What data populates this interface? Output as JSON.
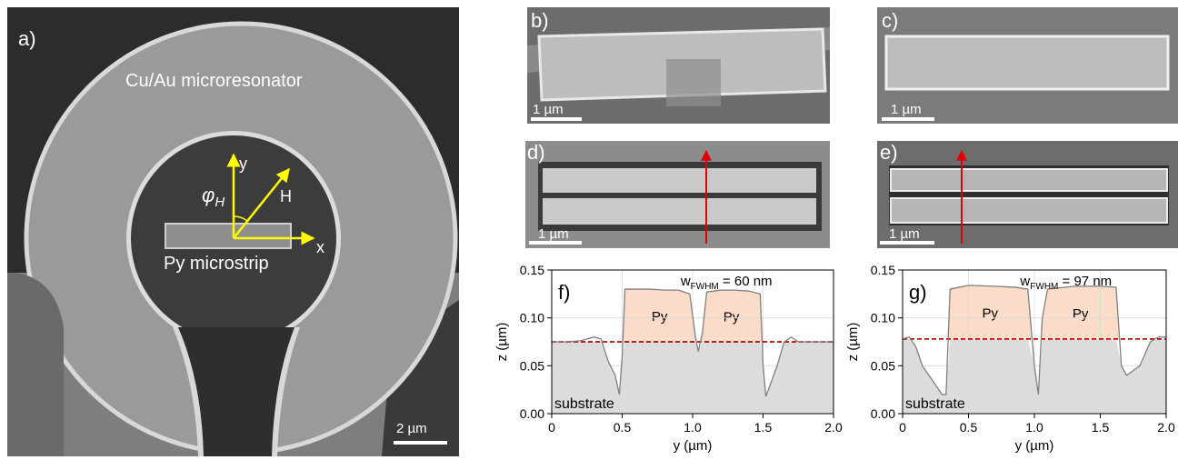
{
  "panels": {
    "a": {
      "label": "a)",
      "resonator": "Cu/Au microresonator",
      "strip": "Py microstrip",
      "axis_y": "y",
      "axis_x": "x",
      "field": "H",
      "angle": "φ",
      "angle_sub": "H",
      "scale": "2 µm"
    },
    "b": {
      "label": "b)",
      "scale": "1 µm"
    },
    "c": {
      "label": "c)",
      "scale": "1 µm"
    },
    "d": {
      "label": "d)",
      "scale": "1 µm"
    },
    "e": {
      "label": "e)",
      "scale": "1 µm"
    }
  },
  "chart_data": [
    {
      "type": "area",
      "label": "f)",
      "annotation": {
        "w": "w",
        "sub": "FWHM",
        "rest": " = 60 nm"
      },
      "region_labels": [
        "Py",
        "Py"
      ],
      "substrate": "substrate",
      "xlabel": "y (µm)",
      "ylabel": "z (µm)",
      "x": [
        0,
        0.1,
        0.2,
        0.3,
        0.35,
        0.4,
        0.45,
        0.48,
        0.5,
        0.52,
        0.6,
        0.7,
        0.8,
        0.9,
        0.98,
        1.02,
        1.04,
        1.07,
        1.1,
        1.2,
        1.3,
        1.4,
        1.48,
        1.5,
        1.52,
        1.55,
        1.6,
        1.65,
        1.7,
        1.75,
        1.8,
        2.0
      ],
      "values": [
        0.075,
        0.075,
        0.076,
        0.08,
        0.078,
        0.055,
        0.04,
        0.02,
        0.06,
        0.13,
        0.13,
        0.13,
        0.129,
        0.129,
        0.125,
        0.08,
        0.065,
        0.085,
        0.127,
        0.129,
        0.129,
        0.128,
        0.125,
        0.05,
        0.018,
        0.03,
        0.05,
        0.075,
        0.08,
        0.075,
        0.075,
        0.075
      ],
      "color": "#7f7f7f",
      "fill_color": "#dcdcdc",
      "region_color": "#fbdcc8",
      "baseline": 0.075,
      "baseline_color": "#c00000",
      "xlim": [
        0,
        2
      ],
      "xticks": [
        0,
        0.5,
        {
          "value": 1,
          "label": "1.0"
        },
        1.5,
        {
          "value": 2,
          "label": "2.0"
        }
      ],
      "ylim": [
        0,
        0.15
      ],
      "yticks": [
        {
          "value": 0,
          "label": "0.00"
        },
        {
          "value": 0.05,
          "label": "0.05"
        },
        {
          "value": 0.1,
          "label": "0.10"
        },
        {
          "value": 0.15,
          "label": "0.15"
        }
      ],
      "grid": true
    },
    {
      "type": "area",
      "label": "g)",
      "annotation": {
        "w": "w",
        "sub": "FWHM",
        "rest": " = 97 nm"
      },
      "region_labels": [
        "Py",
        "Py"
      ],
      "substrate": "substrate",
      "xlabel": "y (µm)",
      "ylabel": "z (µm)",
      "x": [
        0,
        0.05,
        0.1,
        0.15,
        0.2,
        0.25,
        0.3,
        0.33,
        0.36,
        0.5,
        0.7,
        0.85,
        0.95,
        1.0,
        1.03,
        1.06,
        1.1,
        1.3,
        1.5,
        1.62,
        1.66,
        1.7,
        1.8,
        1.88,
        1.94,
        2.0
      ],
      "values": [
        0.078,
        0.08,
        0.07,
        0.05,
        0.04,
        0.03,
        0.02,
        0.02,
        0.13,
        0.134,
        0.133,
        0.132,
        0.13,
        0.05,
        0.02,
        0.1,
        0.13,
        0.133,
        0.133,
        0.132,
        0.05,
        0.04,
        0.05,
        0.075,
        0.08,
        0.08
      ],
      "color": "#7f7f7f",
      "fill_color": "#dcdcdc",
      "region_color": "#fbdcc8",
      "baseline": 0.078,
      "baseline_color": "#c00000",
      "xlim": [
        0,
        2
      ],
      "xticks": [
        0,
        0.5,
        {
          "value": 1,
          "label": "1.0"
        },
        1.5,
        {
          "value": 2,
          "label": "2.0"
        }
      ],
      "ylim": [
        0,
        0.15
      ],
      "yticks": [
        {
          "value": 0,
          "label": "0.00"
        },
        {
          "value": 0.05,
          "label": "0.05"
        },
        {
          "value": 0.1,
          "label": "0.10"
        },
        {
          "value": 0.15,
          "label": "0.15"
        }
      ],
      "grid": true
    }
  ]
}
